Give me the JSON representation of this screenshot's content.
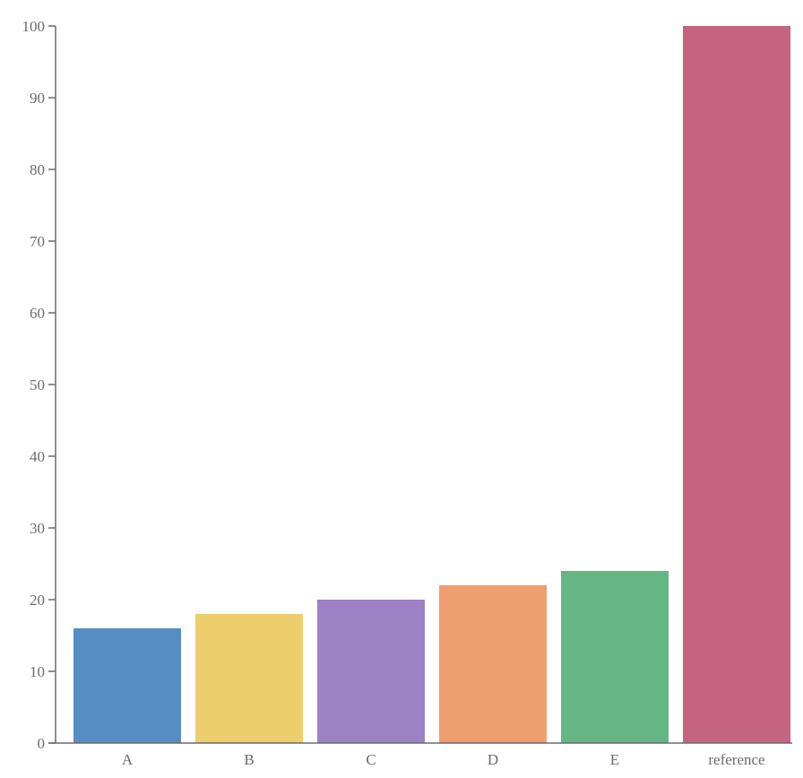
{
  "chart_data": {
    "type": "bar",
    "categories": [
      "A",
      "B",
      "C",
      "D",
      "E",
      "reference"
    ],
    "values": [
      16,
      18,
      20,
      22,
      24,
      100
    ],
    "colors": [
      "#568ec3",
      "#ecce6c",
      "#9c82c4",
      "#ef9e70",
      "#66b684",
      "#c46480"
    ],
    "title": "",
    "xlabel": "",
    "ylabel": "",
    "ylim": [
      0,
      100
    ],
    "yticks": [
      0,
      10,
      20,
      30,
      40,
      50,
      60,
      70,
      80,
      90,
      100
    ],
    "grid": false,
    "legend": "none"
  }
}
